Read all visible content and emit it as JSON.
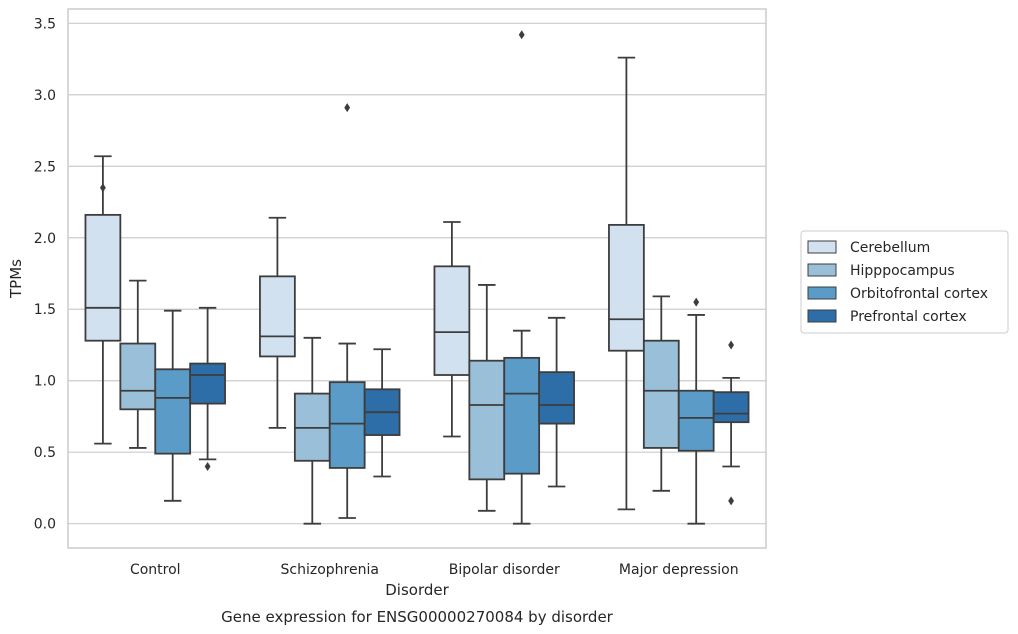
{
  "chart_data": {
    "type": "boxplot",
    "title": "Gene expression for ENSG00000270084 by disorder",
    "xlabel": "Disorder",
    "ylabel": "TPMs",
    "ylim": [
      -0.17,
      3.6
    ],
    "yticks": [
      "0.0",
      "0.5",
      "1.0",
      "1.5",
      "2.0",
      "2.5",
      "3.0",
      "3.5"
    ],
    "grid": "horizontal",
    "legend_position": "right",
    "categories": [
      "Control",
      "Schizophrenia",
      "Bipolar disorder",
      "Major depression"
    ],
    "series": [
      {
        "name": "Cerebellum",
        "color": "#d2e1f0",
        "boxes": [
          {
            "whislo": 0.56,
            "q1": 1.28,
            "med": 1.51,
            "q3": 2.16,
            "whishi": 2.57,
            "fliers": [
              2.35
            ]
          },
          {
            "whislo": 0.67,
            "q1": 1.17,
            "med": 1.31,
            "q3": 1.73,
            "whishi": 2.14,
            "fliers": []
          },
          {
            "whislo": 0.61,
            "q1": 1.04,
            "med": 1.34,
            "q3": 1.8,
            "whishi": 2.11,
            "fliers": []
          },
          {
            "whislo": 0.1,
            "q1": 1.21,
            "med": 1.43,
            "q3": 2.09,
            "whishi": 3.26,
            "fliers": []
          }
        ]
      },
      {
        "name": "Hipppocampus",
        "color": "#9ac0d9",
        "boxes": [
          {
            "whislo": 0.53,
            "q1": 0.8,
            "med": 0.93,
            "q3": 1.26,
            "whishi": 1.7,
            "fliers": []
          },
          {
            "whislo": 0.0,
            "q1": 0.44,
            "med": 0.67,
            "q3": 0.91,
            "whishi": 1.3,
            "fliers": []
          },
          {
            "whislo": 0.09,
            "q1": 0.31,
            "med": 0.83,
            "q3": 1.14,
            "whishi": 1.67,
            "fliers": []
          },
          {
            "whislo": 0.23,
            "q1": 0.53,
            "med": 0.93,
            "q3": 1.28,
            "whishi": 1.59,
            "fliers": []
          }
        ]
      },
      {
        "name": "Orbitofrontal cortex",
        "color": "#5a9bc8",
        "boxes": [
          {
            "whislo": 0.16,
            "q1": 0.49,
            "med": 0.88,
            "q3": 1.08,
            "whishi": 1.49,
            "fliers": []
          },
          {
            "whislo": 0.04,
            "q1": 0.39,
            "med": 0.7,
            "q3": 0.99,
            "whishi": 1.26,
            "fliers": [
              2.91
            ]
          },
          {
            "whislo": 0.0,
            "q1": 0.35,
            "med": 0.91,
            "q3": 1.16,
            "whishi": 1.35,
            "fliers": [
              3.42
            ]
          },
          {
            "whislo": 0.0,
            "q1": 0.51,
            "med": 0.74,
            "q3": 0.93,
            "whishi": 1.46,
            "fliers": [
              1.55
            ]
          }
        ]
      },
      {
        "name": "Prefrontal cortex",
        "color": "#2d6ea8",
        "boxes": [
          {
            "whislo": 0.45,
            "q1": 0.84,
            "med": 1.04,
            "q3": 1.12,
            "whishi": 1.51,
            "fliers": [
              0.4
            ]
          },
          {
            "whislo": 0.33,
            "q1": 0.62,
            "med": 0.78,
            "q3": 0.94,
            "whishi": 1.22,
            "fliers": []
          },
          {
            "whislo": 0.26,
            "q1": 0.7,
            "med": 0.83,
            "q3": 1.06,
            "whishi": 1.44,
            "fliers": []
          },
          {
            "whislo": 0.4,
            "q1": 0.71,
            "med": 0.77,
            "q3": 0.92,
            "whishi": 1.02,
            "fliers": [
              1.25,
              0.16
            ]
          }
        ]
      }
    ]
  }
}
